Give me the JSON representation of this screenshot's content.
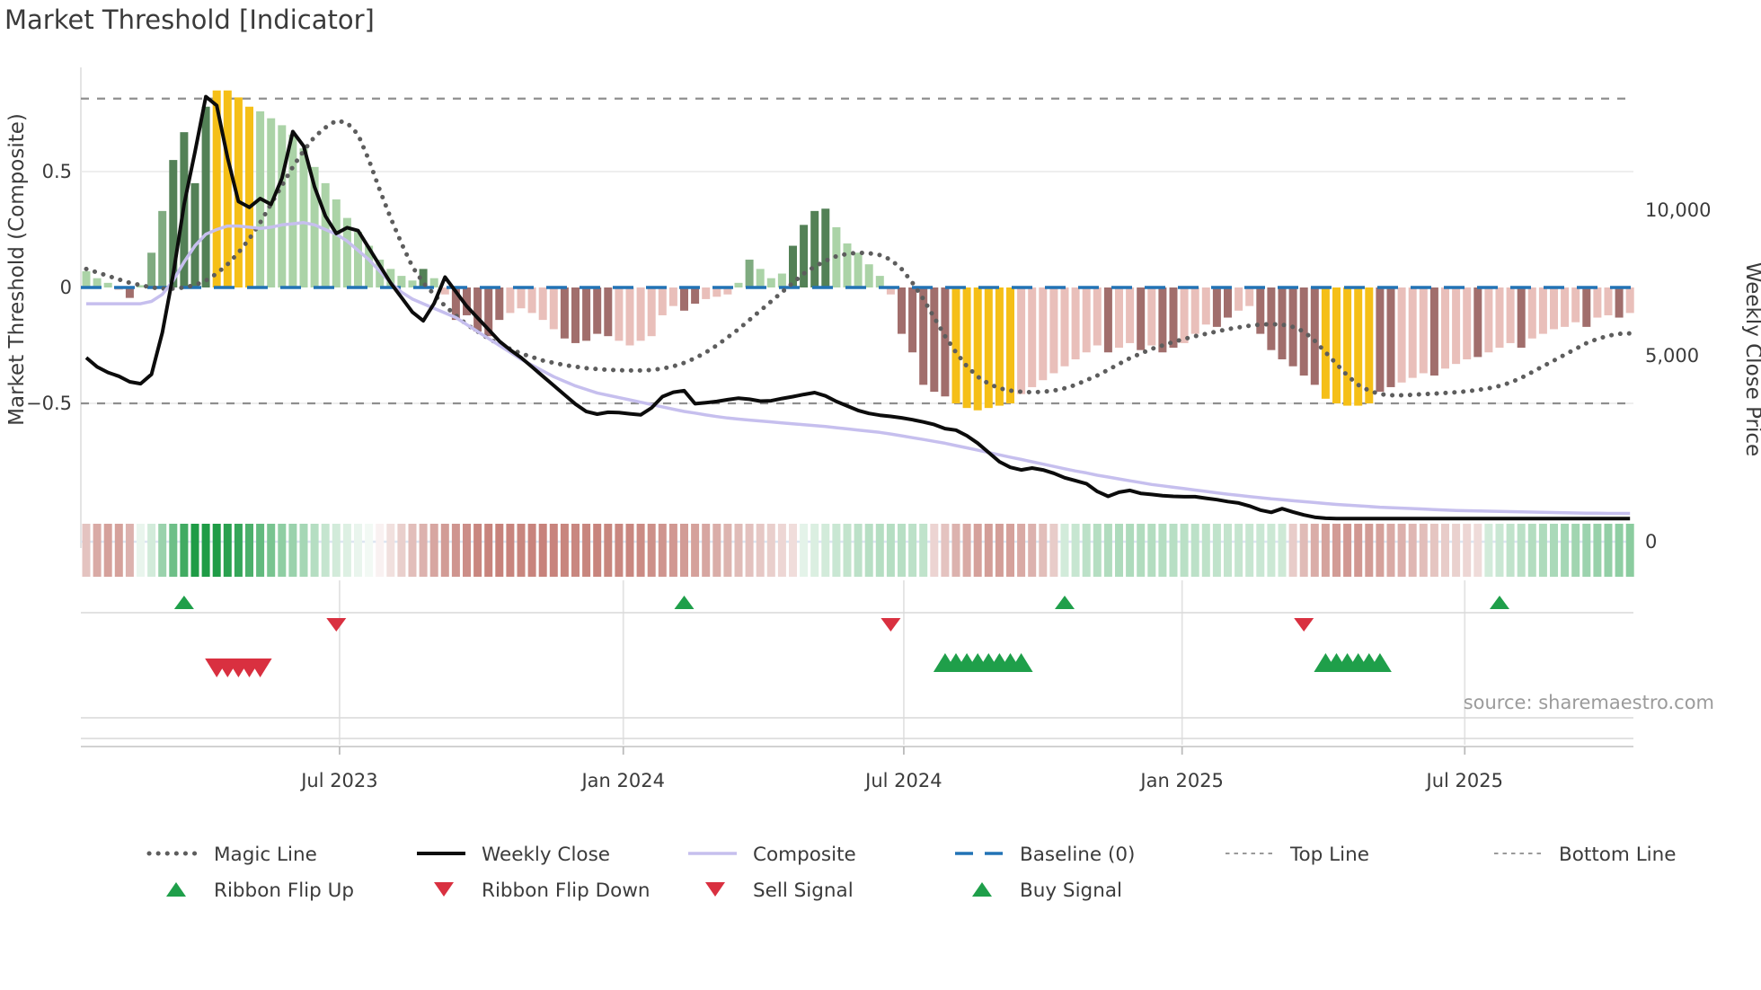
{
  "title": "Market Threshold [Indicator]",
  "source": "source: sharemaestro.com",
  "palette": {
    "bar_dark_green": "#538156",
    "bar_mid_green": "#7fab80",
    "bar_light_green": "#abd3a7",
    "bar_yellow": "#f5bf17",
    "bar_dark_red": "#a16e6c",
    "bar_light_red": "#e9bfba",
    "weekly_close_line": "#0c0c0c",
    "composite_line": "#c6bfee",
    "magic_line": "#5d5d5d",
    "baseline_blue": "#2273b5",
    "guide_gray": "#8f8f8f",
    "ribbon_green_full": "#1f9c46",
    "ribbon_red_full": "#b2544a",
    "signal_green": "#1f9f4a",
    "signal_red": "#d93040",
    "grid": "#e9e9e9",
    "zero_price_line": "#dde6f2",
    "text": "#3b3b3b",
    "muted_text": "#9b9b9b"
  },
  "chart_data": {
    "type": "combo",
    "title": "Market Threshold [Indicator]",
    "left_axis": {
      "label": "Market Threshold (Composite)",
      "ticks": [
        {
          "label": "0.5",
          "value": 0.5
        },
        {
          "label": "0",
          "value": 0
        },
        {
          "label": "−0.5",
          "value": -0.5
        }
      ],
      "ylim": [
        -1.12,
        0.95
      ]
    },
    "right_axis": {
      "label": "Weekly Close Price",
      "ticks": [
        {
          "label": "10,000",
          "value": 10000
        },
        {
          "label": "5,000",
          "value": 5000
        },
        {
          "label": "0",
          "value": 0
        }
      ]
    },
    "x_axis": {
      "ticks": [
        {
          "label": "Jul 2023",
          "week": 23.3
        },
        {
          "label": "Jan 2024",
          "week": 49.4
        },
        {
          "label": "Jul 2024",
          "week": 75.2
        },
        {
          "label": "Jan 2025",
          "week": 100.8
        },
        {
          "label": "Jul 2025",
          "week": 126.8
        }
      ]
    },
    "top_line": 0.815,
    "bottom_line": -0.5,
    "baseline": 0,
    "bars": {
      "values": [
        0.07,
        0.04,
        0.02,
        -0.01,
        -0.045,
        0.01,
        0.15,
        0.33,
        0.55,
        0.67,
        0.45,
        0.78,
        0.85,
        0.85,
        0.82,
        0.78,
        0.76,
        0.73,
        0.7,
        0.66,
        0.6,
        0.52,
        0.45,
        0.38,
        0.3,
        0.24,
        0.18,
        0.12,
        0.08,
        0.05,
        0.03,
        0.08,
        0.04,
        -0.03,
        -0.14,
        -0.12,
        -0.19,
        -0.21,
        -0.14,
        -0.11,
        -0.09,
        -0.11,
        -0.14,
        -0.18,
        -0.22,
        -0.24,
        -0.23,
        -0.2,
        -0.21,
        -0.23,
        -0.25,
        -0.23,
        -0.21,
        -0.12,
        -0.08,
        -0.1,
        -0.07,
        -0.05,
        -0.04,
        -0.03,
        0.02,
        0.12,
        0.08,
        0.04,
        0.06,
        0.18,
        0.27,
        0.33,
        0.34,
        0.26,
        0.19,
        0.15,
        0.1,
        0.05,
        -0.03,
        -0.2,
        -0.28,
        -0.42,
        -0.45,
        -0.47,
        -0.5,
        -0.52,
        -0.53,
        -0.52,
        -0.51,
        -0.5,
        -0.46,
        -0.43,
        -0.4,
        -0.37,
        -0.34,
        -0.31,
        -0.28,
        -0.25,
        -0.28,
        -0.26,
        -0.24,
        -0.27,
        -0.25,
        -0.28,
        -0.26,
        -0.24,
        -0.2,
        -0.16,
        -0.17,
        -0.13,
        -0.1,
        -0.08,
        -0.2,
        -0.27,
        -0.31,
        -0.34,
        -0.38,
        -0.42,
        -0.48,
        -0.5,
        -0.51,
        -0.51,
        -0.5,
        -0.45,
        -0.43,
        -0.41,
        -0.39,
        -0.37,
        -0.38,
        -0.35,
        -0.33,
        -0.31,
        -0.3,
        -0.28,
        -0.26,
        -0.24,
        -0.26,
        -0.22,
        -0.2,
        -0.18,
        -0.17,
        -0.15,
        -0.17,
        -0.13,
        -0.12,
        -0.13,
        -0.11
      ],
      "colors": "lllprlmmggggyyyylllllllllllllllglprrrrrppppprrrrrpppppprrppplmlllgggglllllprrrrryyyyyypppppppprpprprrppprrpprrrrrryyyyyrrppprpppr ppprpppppr pprp"
    },
    "magic_line": [
      0.08,
      0.065,
      0.05,
      0.035,
      0.02,
      0.01,
      0.0,
      -0.005,
      -0.005,
      0.0,
      0.01,
      0.03,
      0.06,
      0.1,
      0.15,
      0.21,
      0.28,
      0.36,
      0.44,
      0.52,
      0.59,
      0.65,
      0.69,
      0.72,
      0.71,
      0.66,
      0.55,
      0.42,
      0.3,
      0.19,
      0.09,
      0.02,
      -0.03,
      -0.08,
      -0.12,
      -0.16,
      -0.19,
      -0.22,
      -0.245,
      -0.265,
      -0.285,
      -0.3,
      -0.315,
      -0.325,
      -0.335,
      -0.342,
      -0.348,
      -0.352,
      -0.355,
      -0.357,
      -0.358,
      -0.358,
      -0.356,
      -0.35,
      -0.34,
      -0.325,
      -0.305,
      -0.28,
      -0.25,
      -0.215,
      -0.18,
      -0.14,
      -0.1,
      -0.06,
      -0.02,
      0.02,
      0.06,
      0.09,
      0.115,
      0.135,
      0.145,
      0.15,
      0.148,
      0.14,
      0.12,
      0.08,
      0.02,
      -0.05,
      -0.13,
      -0.21,
      -0.28,
      -0.34,
      -0.385,
      -0.415,
      -0.435,
      -0.445,
      -0.45,
      -0.452,
      -0.45,
      -0.445,
      -0.435,
      -0.42,
      -0.4,
      -0.38,
      -0.355,
      -0.33,
      -0.305,
      -0.285,
      -0.265,
      -0.25,
      -0.235,
      -0.222,
      -0.21,
      -0.2,
      -0.19,
      -0.18,
      -0.172,
      -0.165,
      -0.16,
      -0.158,
      -0.16,
      -0.17,
      -0.19,
      -0.23,
      -0.28,
      -0.33,
      -0.38,
      -0.42,
      -0.445,
      -0.46,
      -0.465,
      -0.465,
      -0.463,
      -0.46,
      -0.458,
      -0.455,
      -0.452,
      -0.448,
      -0.442,
      -0.435,
      -0.425,
      -0.41,
      -0.39,
      -0.365,
      -0.34,
      -0.315,
      -0.29,
      -0.265,
      -0.24,
      -0.222,
      -0.208,
      -0.2,
      -0.198
    ],
    "composite": [
      -0.07,
      -0.07,
      -0.07,
      -0.07,
      -0.07,
      -0.07,
      -0.06,
      -0.03,
      0.03,
      0.11,
      0.18,
      0.23,
      0.25,
      0.265,
      0.265,
      0.26,
      0.255,
      0.26,
      0.27,
      0.275,
      0.28,
      0.27,
      0.25,
      0.23,
      0.2,
      0.16,
      0.12,
      0.07,
      0.02,
      -0.02,
      -0.05,
      -0.07,
      -0.09,
      -0.11,
      -0.13,
      -0.16,
      -0.19,
      -0.22,
      -0.25,
      -0.28,
      -0.31,
      -0.335,
      -0.36,
      -0.385,
      -0.405,
      -0.425,
      -0.44,
      -0.455,
      -0.465,
      -0.475,
      -0.485,
      -0.495,
      -0.505,
      -0.515,
      -0.525,
      -0.535,
      -0.542,
      -0.55,
      -0.557,
      -0.563,
      -0.568,
      -0.572,
      -0.576,
      -0.58,
      -0.584,
      -0.588,
      -0.592,
      -0.596,
      -0.6,
      -0.605,
      -0.61,
      -0.615,
      -0.62,
      -0.625,
      -0.632,
      -0.64,
      -0.648,
      -0.656,
      -0.664,
      -0.672,
      -0.682,
      -0.692,
      -0.702,
      -0.712,
      -0.722,
      -0.732,
      -0.742,
      -0.752,
      -0.762,
      -0.772,
      -0.782,
      -0.792,
      -0.8,
      -0.81,
      -0.818,
      -0.826,
      -0.834,
      -0.842,
      -0.85,
      -0.856,
      -0.862,
      -0.868,
      -0.874,
      -0.88,
      -0.886,
      -0.892,
      -0.897,
      -0.902,
      -0.907,
      -0.912,
      -0.916,
      -0.92,
      -0.924,
      -0.928,
      -0.932,
      -0.936,
      -0.939,
      -0.942,
      -0.945,
      -0.948,
      -0.95,
      -0.952,
      -0.954,
      -0.956,
      -0.958,
      -0.96,
      -0.962,
      -0.963,
      -0.964,
      -0.965,
      -0.966,
      -0.967,
      -0.968,
      -0.969,
      -0.97,
      -0.971,
      -0.972,
      -0.973,
      -0.974,
      -0.974,
      -0.975,
      -0.975,
      -0.975
    ],
    "weekly_close": [
      4950,
      4700,
      4550,
      4450,
      4300,
      4250,
      4500,
      5800,
      7800,
      10200,
      12000,
      13900,
      13600,
      11800,
      10300,
      10100,
      10400,
      10200,
      11100,
      12700,
      12200,
      10800,
      9800,
      9200,
      9400,
      9300,
      8700,
      8100,
      7500,
      7000,
      6500,
      6200,
      6800,
      7700,
      7200,
      6700,
      6300,
      5900,
      5500,
      5200,
      4950,
      4700,
      4450,
      4200,
      3950,
      3700,
      3500,
      3430,
      3480,
      3470,
      3440,
      3410,
      3600,
      3900,
      4020,
      4060,
      3710,
      3740,
      3770,
      3820,
      3860,
      3830,
      3780,
      3790,
      3850,
      3900,
      3960,
      4010,
      3920,
      3770,
      3650,
      3530,
      3450,
      3400,
      3370,
      3330,
      3280,
      3220,
      3150,
      3040,
      3000,
      2850,
      2650,
      2400,
      2150,
      2000,
      1930,
      1980,
      1930,
      1840,
      1720,
      1640,
      1560,
      1350,
      1220,
      1330,
      1380,
      1300,
      1270,
      1240,
      1220,
      1210,
      1210,
      1170,
      1130,
      1080,
      1040,
      960,
      850,
      790,
      890,
      800,
      720,
      660,
      630,
      620,
      620,
      620,
      620,
      620,
      620,
      620,
      620,
      620,
      620,
      620,
      620,
      620,
      620,
      620,
      620,
      620,
      620,
      620,
      620,
      620,
      620,
      620,
      620,
      620,
      620,
      620,
      620
    ],
    "ribbon": [
      -0.35,
      -0.5,
      -0.55,
      -0.55,
      -0.45,
      0.1,
      0.2,
      0.45,
      0.65,
      0.85,
      1.0,
      1.0,
      1.0,
      0.95,
      0.9,
      0.8,
      0.7,
      0.6,
      0.5,
      0.45,
      0.4,
      0.33,
      0.26,
      0.2,
      0.15,
      0.1,
      0.06,
      -0.08,
      -0.18,
      -0.28,
      -0.38,
      -0.45,
      -0.52,
      -0.58,
      -0.62,
      -0.66,
      -0.7,
      -0.72,
      -0.73,
      -0.72,
      -0.71,
      -0.72,
      -0.73,
      -0.72,
      -0.71,
      -0.7,
      -0.71,
      -0.72,
      -0.71,
      -0.7,
      -0.7,
      -0.68,
      -0.65,
      -0.62,
      -0.6,
      -0.58,
      -0.55,
      -0.52,
      -0.48,
      -0.44,
      -0.4,
      -0.36,
      -0.32,
      -0.28,
      -0.24,
      -0.2,
      0.12,
      0.16,
      0.2,
      0.24,
      0.27,
      0.3,
      0.32,
      0.33,
      0.33,
      0.32,
      0.3,
      0.28,
      -0.25,
      -0.35,
      -0.45,
      -0.5,
      -0.55,
      -0.57,
      -0.57,
      -0.55,
      -0.5,
      -0.45,
      -0.38,
      -0.3,
      0.2,
      0.25,
      0.3,
      0.33,
      0.35,
      0.36,
      0.36,
      0.35,
      0.34,
      0.33,
      0.32,
      0.31,
      0.3,
      0.29,
      0.28,
      0.27,
      0.26,
      0.25,
      0.24,
      0.23,
      0.22,
      -0.3,
      -0.4,
      -0.48,
      -0.54,
      -0.58,
      -0.6,
      -0.6,
      -0.58,
      -0.55,
      -0.5,
      -0.46,
      -0.42,
      -0.38,
      -0.34,
      -0.3,
      -0.27,
      -0.24,
      -0.21,
      0.2,
      0.24,
      0.28,
      0.31,
      0.34,
      0.36,
      0.38,
      0.4,
      0.42,
      0.44,
      0.46,
      0.48,
      0.5,
      0.52
    ],
    "signals": {
      "ribbon_flip_up_weeks": [
        9,
        55,
        90,
        130
      ],
      "ribbon_flip_down_weeks": [
        23,
        74,
        112
      ],
      "sell_signal_weeks": [
        12,
        13,
        14,
        15,
        16
      ],
      "buy_signal_weeks": [
        79,
        80,
        81,
        82,
        83,
        84,
        85,
        86,
        114,
        115,
        116,
        117,
        118,
        119
      ]
    },
    "legend": {
      "row1": [
        {
          "label": "Magic Line",
          "style": "dotted-gray"
        },
        {
          "label": "Weekly Close",
          "style": "solid-black"
        },
        {
          "label": "Composite",
          "style": "solid-lavender"
        },
        {
          "label": "Baseline (0)",
          "style": "dashed-blue"
        },
        {
          "label": "Top Line",
          "style": "finedash-gray"
        },
        {
          "label": "Bottom Line",
          "style": "finedash-gray"
        }
      ],
      "row2": [
        {
          "label": "Ribbon Flip Up",
          "style": "triangle-up-green"
        },
        {
          "label": "Ribbon Flip Down",
          "style": "triangle-down-red"
        },
        {
          "label": "Sell Signal",
          "style": "triangle-down-red"
        },
        {
          "label": "Buy Signal",
          "style": "triangle-up-green"
        }
      ]
    }
  }
}
